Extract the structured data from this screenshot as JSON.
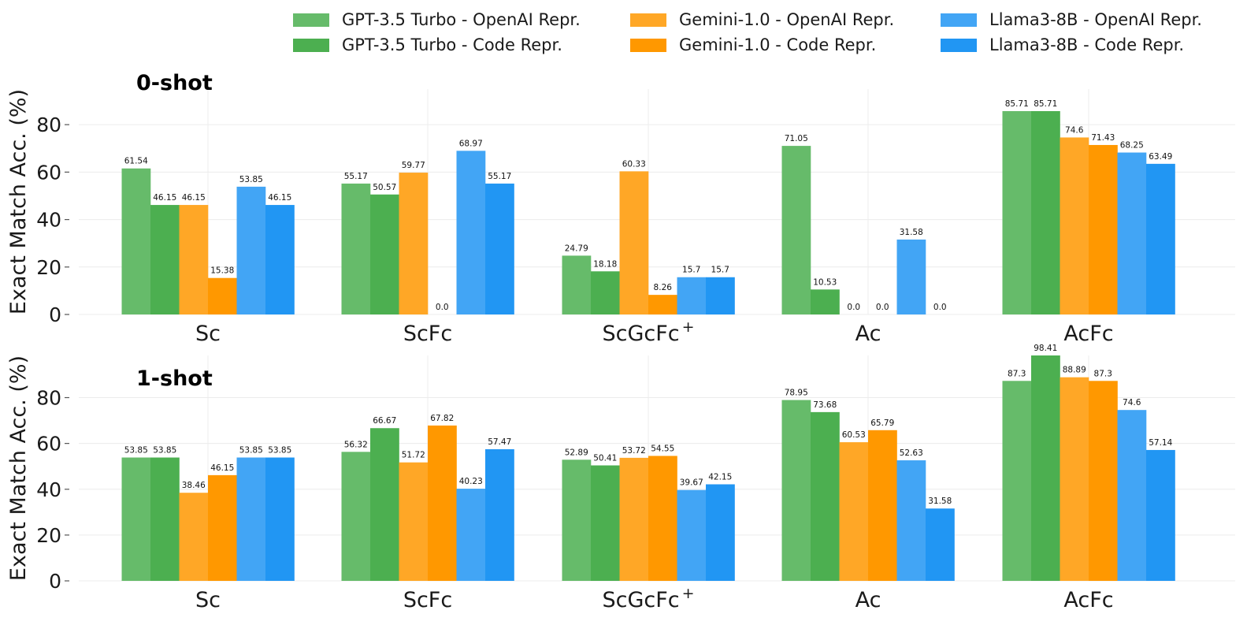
{
  "legend": [
    {
      "label": "GPT-3.5 Turbo - OpenAI Repr.",
      "color": "#66bb6a"
    },
    {
      "label": "GPT-3.5 Turbo - Code Repr.",
      "color": "#4caf50"
    },
    {
      "label": "Gemini-1.0 - OpenAI Repr.",
      "color": "#ffa726"
    },
    {
      "label": "Gemini-1.0 - Code Repr.",
      "color": "#ff9800"
    },
    {
      "label": "Llama3-8B - OpenAI Repr.",
      "color": "#42a5f5"
    },
    {
      "label": "Llama3-8B - Code Repr.",
      "color": "#2196f3"
    }
  ],
  "chart_data": [
    {
      "type": "bar",
      "title": "0-shot",
      "ylabel": "Exact Match Acc. (%)",
      "ylim": [
        0,
        95
      ],
      "yticks": [
        0,
        20,
        40,
        60,
        80
      ],
      "categories": [
        "Sc",
        "ScFc",
        "ScGcFc+",
        "Ac",
        "AcFc"
      ],
      "grid": true,
      "legend_position": "top",
      "series": [
        {
          "name": "GPT-3.5 Turbo - OpenAI Repr.",
          "color": "#66bb6a",
          "values": [
            61.54,
            55.17,
            24.79,
            71.05,
            85.71
          ]
        },
        {
          "name": "GPT-3.5 Turbo - Code Repr.",
          "color": "#4caf50",
          "values": [
            46.15,
            50.57,
            18.18,
            10.53,
            85.71
          ]
        },
        {
          "name": "Gemini-1.0 - OpenAI Repr.",
          "color": "#ffa726",
          "values": [
            46.15,
            59.77,
            60.33,
            0.0,
            74.6
          ]
        },
        {
          "name": "Gemini-1.0 - Code Repr.",
          "color": "#ff9800",
          "values": [
            15.38,
            0.0,
            8.26,
            0.0,
            71.43
          ]
        },
        {
          "name": "Llama3-8B - OpenAI Repr.",
          "color": "#42a5f5",
          "values": [
            53.85,
            68.97,
            15.7,
            31.58,
            68.25
          ]
        },
        {
          "name": "Llama3-8B - Code Repr.",
          "color": "#2196f3",
          "values": [
            46.15,
            55.17,
            15.7,
            0.0,
            63.49
          ]
        }
      ]
    },
    {
      "type": "bar",
      "title": "1-shot",
      "ylabel": "Exact Match Acc. (%)",
      "ylim": [
        0,
        98.41
      ],
      "yticks": [
        0,
        20,
        40,
        60,
        80
      ],
      "categories": [
        "Sc",
        "ScFc",
        "ScGcFc+",
        "Ac",
        "AcFc"
      ],
      "grid": true,
      "series": [
        {
          "name": "GPT-3.5 Turbo - OpenAI Repr.",
          "color": "#66bb6a",
          "values": [
            53.85,
            56.32,
            52.89,
            78.95,
            87.3
          ]
        },
        {
          "name": "GPT-3.5 Turbo - Code Repr.",
          "color": "#4caf50",
          "values": [
            53.85,
            66.67,
            50.41,
            73.68,
            98.41
          ]
        },
        {
          "name": "Gemini-1.0 - OpenAI Repr.",
          "color": "#ffa726",
          "values": [
            38.46,
            51.72,
            53.72,
            60.53,
            88.89
          ]
        },
        {
          "name": "Gemini-1.0 - Code Repr.",
          "color": "#ff9800",
          "values": [
            46.15,
            67.82,
            54.55,
            65.79,
            87.3
          ]
        },
        {
          "name": "Llama3-8B - OpenAI Repr.",
          "color": "#42a5f5",
          "values": [
            53.85,
            40.23,
            39.67,
            52.63,
            74.6
          ]
        },
        {
          "name": "Llama3-8B - Code Repr.",
          "color": "#2196f3",
          "values": [
            53.85,
            57.47,
            42.15,
            31.58,
            57.14
          ]
        }
      ]
    }
  ]
}
